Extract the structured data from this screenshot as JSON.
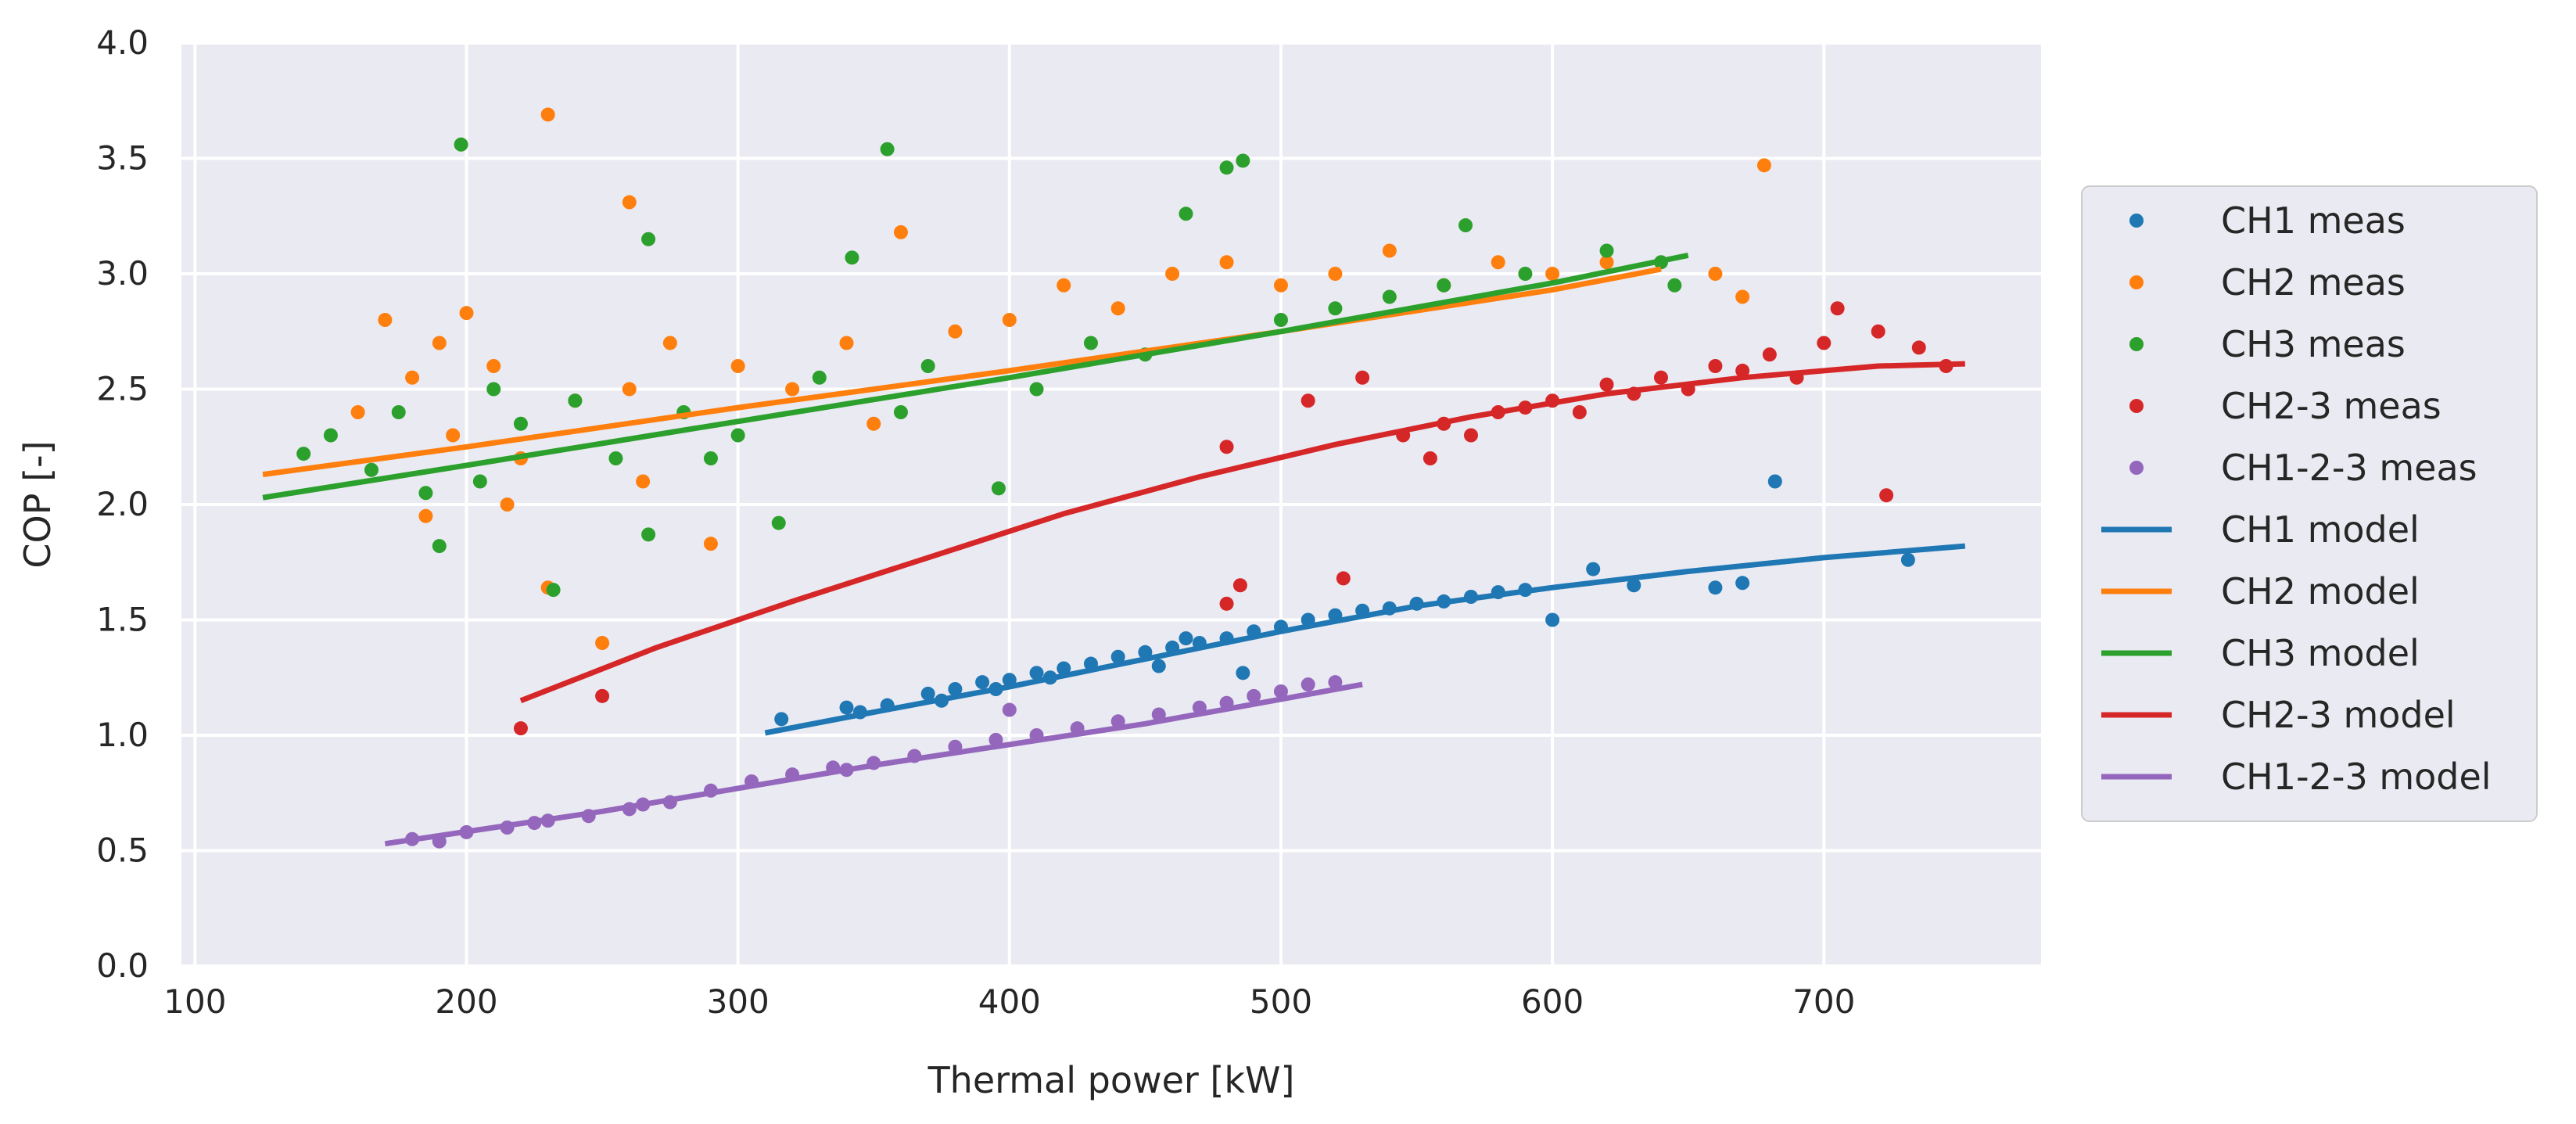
{
  "chart_data": {
    "type": "scatter",
    "title": "",
    "xlabel": "Thermal power [kW]",
    "ylabel": "COP [-]",
    "xlim": [
      95,
      780
    ],
    "ylim": [
      0,
      4.0
    ],
    "xticks": [
      100,
      200,
      300,
      400,
      500,
      600,
      700
    ],
    "yticks": [
      0.0,
      0.5,
      1.0,
      1.5,
      2.0,
      2.5,
      3.0,
      3.5,
      4.0
    ],
    "ytick_labels": [
      "0.0",
      "0.5",
      "1.0",
      "1.5",
      "2.0",
      "2.5",
      "3.0",
      "3.5",
      "4.0"
    ],
    "background": "#eaeaf2",
    "grid": true,
    "legend_position": "right-outside",
    "series": [
      {
        "name": "CH1 meas",
        "kind": "scatter",
        "color": "#1f77b4",
        "points": [
          [
            316,
            1.07
          ],
          [
            340,
            1.12
          ],
          [
            355,
            1.13
          ],
          [
            370,
            1.18
          ],
          [
            380,
            1.2
          ],
          [
            390,
            1.23
          ],
          [
            400,
            1.24
          ],
          [
            410,
            1.27
          ],
          [
            420,
            1.29
          ],
          [
            430,
            1.31
          ],
          [
            440,
            1.34
          ],
          [
            450,
            1.36
          ],
          [
            460,
            1.38
          ],
          [
            470,
            1.4
          ],
          [
            480,
            1.42
          ],
          [
            490,
            1.45
          ],
          [
            500,
            1.47
          ],
          [
            510,
            1.5
          ],
          [
            520,
            1.52
          ],
          [
            530,
            1.54
          ],
          [
            540,
            1.55
          ],
          [
            550,
            1.57
          ],
          [
            560,
            1.58
          ],
          [
            570,
            1.6
          ],
          [
            580,
            1.62
          ],
          [
            590,
            1.63
          ],
          [
            600,
            1.5
          ],
          [
            615,
            1.72
          ],
          [
            630,
            1.65
          ],
          [
            660,
            1.64
          ],
          [
            670,
            1.66
          ],
          [
            682,
            2.1
          ],
          [
            731,
            1.76
          ],
          [
            486,
            1.27
          ],
          [
            455,
            1.3
          ],
          [
            395,
            1.2
          ],
          [
            345,
            1.1
          ],
          [
            375,
            1.15
          ],
          [
            415,
            1.25
          ],
          [
            465,
            1.42
          ]
        ]
      },
      {
        "name": "CH2 meas",
        "kind": "scatter",
        "color": "#ff7f0e",
        "points": [
          [
            160,
            2.4
          ],
          [
            170,
            2.8
          ],
          [
            180,
            2.55
          ],
          [
            190,
            2.7
          ],
          [
            195,
            2.3
          ],
          [
            200,
            2.83
          ],
          [
            210,
            2.6
          ],
          [
            220,
            2.2
          ],
          [
            230,
            3.69
          ],
          [
            230,
            1.64
          ],
          [
            240,
            2.45
          ],
          [
            250,
            1.4
          ],
          [
            260,
            3.31
          ],
          [
            260,
            2.5
          ],
          [
            275,
            2.7
          ],
          [
            290,
            1.83
          ],
          [
            300,
            2.6
          ],
          [
            320,
            2.5
          ],
          [
            340,
            2.7
          ],
          [
            360,
            3.18
          ],
          [
            380,
            2.75
          ],
          [
            400,
            2.8
          ],
          [
            420,
            2.95
          ],
          [
            440,
            2.85
          ],
          [
            460,
            3.0
          ],
          [
            480,
            3.05
          ],
          [
            500,
            2.95
          ],
          [
            520,
            3.0
          ],
          [
            540,
            3.1
          ],
          [
            560,
            2.95
          ],
          [
            580,
            3.05
          ],
          [
            600,
            3.0
          ],
          [
            620,
            3.05
          ],
          [
            660,
            3.0
          ],
          [
            670,
            2.9
          ],
          [
            678,
            3.47
          ],
          [
            185,
            1.95
          ],
          [
            215,
            2.0
          ],
          [
            265,
            2.1
          ],
          [
            350,
            2.35
          ]
        ]
      },
      {
        "name": "CH3 meas",
        "kind": "scatter",
        "color": "#2ca02c",
        "points": [
          [
            140,
            2.22
          ],
          [
            150,
            2.3
          ],
          [
            165,
            2.15
          ],
          [
            175,
            2.4
          ],
          [
            185,
            2.05
          ],
          [
            190,
            1.82
          ],
          [
            198,
            3.56
          ],
          [
            210,
            2.5
          ],
          [
            220,
            2.35
          ],
          [
            232,
            1.63
          ],
          [
            240,
            2.45
          ],
          [
            255,
            2.2
          ],
          [
            267,
            3.15
          ],
          [
            267,
            1.87
          ],
          [
            280,
            2.4
          ],
          [
            300,
            2.3
          ],
          [
            315,
            1.92
          ],
          [
            330,
            2.55
          ],
          [
            342,
            3.07
          ],
          [
            355,
            3.54
          ],
          [
            370,
            2.6
          ],
          [
            396,
            2.07
          ],
          [
            410,
            2.5
          ],
          [
            430,
            2.7
          ],
          [
            450,
            2.65
          ],
          [
            465,
            3.26
          ],
          [
            480,
            3.46
          ],
          [
            486,
            3.49
          ],
          [
            500,
            2.8
          ],
          [
            520,
            2.85
          ],
          [
            540,
            2.9
          ],
          [
            560,
            2.95
          ],
          [
            568,
            3.21
          ],
          [
            590,
            3.0
          ],
          [
            620,
            3.1
          ],
          [
            640,
            3.05
          ],
          [
            645,
            2.95
          ],
          [
            205,
            2.1
          ],
          [
            290,
            2.2
          ],
          [
            360,
            2.4
          ]
        ]
      },
      {
        "name": "CH2-3 meas",
        "kind": "scatter",
        "color": "#d62728",
        "points": [
          [
            220,
            1.03
          ],
          [
            250,
            1.17
          ],
          [
            480,
            1.57
          ],
          [
            485,
            1.65
          ],
          [
            523,
            1.68
          ],
          [
            480,
            2.25
          ],
          [
            510,
            2.45
          ],
          [
            530,
            2.55
          ],
          [
            545,
            2.3
          ],
          [
            560,
            2.35
          ],
          [
            580,
            2.4
          ],
          [
            600,
            2.45
          ],
          [
            620,
            2.52
          ],
          [
            640,
            2.55
          ],
          [
            660,
            2.6
          ],
          [
            680,
            2.65
          ],
          [
            700,
            2.7
          ],
          [
            720,
            2.75
          ],
          [
            723,
            2.04
          ],
          [
            735,
            2.68
          ],
          [
            745,
            2.6
          ],
          [
            705,
            2.85
          ],
          [
            690,
            2.55
          ],
          [
            670,
            2.58
          ],
          [
            650,
            2.5
          ],
          [
            630,
            2.48
          ],
          [
            610,
            2.4
          ],
          [
            590,
            2.42
          ],
          [
            570,
            2.3
          ],
          [
            555,
            2.2
          ]
        ]
      },
      {
        "name": "CH1-2-3 meas",
        "kind": "scatter",
        "color": "#9467bd",
        "points": [
          [
            180,
            0.55
          ],
          [
            190,
            0.54
          ],
          [
            200,
            0.58
          ],
          [
            215,
            0.6
          ],
          [
            230,
            0.63
          ],
          [
            245,
            0.65
          ],
          [
            260,
            0.68
          ],
          [
            275,
            0.71
          ],
          [
            290,
            0.76
          ],
          [
            305,
            0.8
          ],
          [
            320,
            0.83
          ],
          [
            335,
            0.86
          ],
          [
            350,
            0.88
          ],
          [
            365,
            0.91
          ],
          [
            380,
            0.95
          ],
          [
            395,
            0.98
          ],
          [
            400,
            1.11
          ],
          [
            410,
            1.0
          ],
          [
            425,
            1.03
          ],
          [
            440,
            1.06
          ],
          [
            455,
            1.09
          ],
          [
            470,
            1.12
          ],
          [
            480,
            1.14
          ],
          [
            490,
            1.17
          ],
          [
            500,
            1.19
          ],
          [
            510,
            1.22
          ],
          [
            520,
            1.23
          ],
          [
            225,
            0.62
          ],
          [
            265,
            0.7
          ],
          [
            340,
            0.85
          ]
        ]
      },
      {
        "name": "CH1 model",
        "kind": "line",
        "color": "#1f77b4",
        "points": [
          [
            310,
            1.01
          ],
          [
            350,
            1.1
          ],
          [
            400,
            1.21
          ],
          [
            450,
            1.33
          ],
          [
            500,
            1.45
          ],
          [
            550,
            1.56
          ],
          [
            600,
            1.64
          ],
          [
            650,
            1.71
          ],
          [
            700,
            1.77
          ],
          [
            752,
            1.82
          ]
        ]
      },
      {
        "name": "CH2 model",
        "kind": "line",
        "color": "#ff7f0e",
        "points": [
          [
            125,
            2.13
          ],
          [
            200,
            2.25
          ],
          [
            300,
            2.42
          ],
          [
            400,
            2.58
          ],
          [
            500,
            2.75
          ],
          [
            600,
            2.93
          ],
          [
            640,
            3.02
          ]
        ]
      },
      {
        "name": "CH3 model",
        "kind": "line",
        "color": "#2ca02c",
        "points": [
          [
            125,
            2.03
          ],
          [
            200,
            2.17
          ],
          [
            300,
            2.36
          ],
          [
            400,
            2.55
          ],
          [
            500,
            2.75
          ],
          [
            600,
            2.96
          ],
          [
            650,
            3.08
          ]
        ]
      },
      {
        "name": "CH2-3 model",
        "kind": "line",
        "color": "#d62728",
        "points": [
          [
            220,
            1.15
          ],
          [
            270,
            1.38
          ],
          [
            320,
            1.58
          ],
          [
            370,
            1.77
          ],
          [
            420,
            1.96
          ],
          [
            470,
            2.12
          ],
          [
            520,
            2.26
          ],
          [
            570,
            2.38
          ],
          [
            620,
            2.48
          ],
          [
            670,
            2.55
          ],
          [
            720,
            2.6
          ],
          [
            752,
            2.61
          ]
        ]
      },
      {
        "name": "CH1-2-3 model",
        "kind": "line",
        "color": "#9467bd",
        "points": [
          [
            170,
            0.53
          ],
          [
            250,
            0.67
          ],
          [
            350,
            0.87
          ],
          [
            450,
            1.05
          ],
          [
            530,
            1.22
          ]
        ]
      }
    ]
  }
}
